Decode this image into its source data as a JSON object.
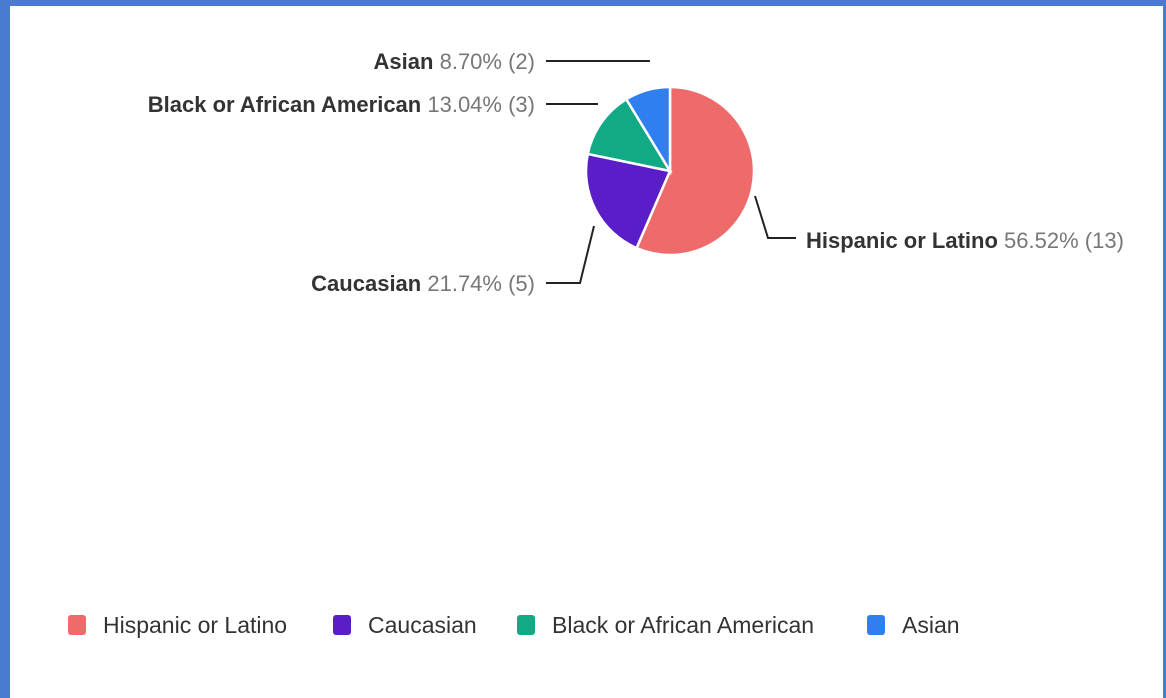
{
  "chart_data": {
    "type": "pie",
    "categories": [
      "Hispanic or Latino",
      "Caucasian",
      "Black or African American",
      "Asian"
    ],
    "values": [
      56.52,
      21.74,
      13.04,
      8.7
    ],
    "value_labels": [
      "56.52%",
      "21.74%",
      "13.04%",
      "8.70%"
    ],
    "counts": [
      13,
      5,
      3,
      2
    ],
    "count_labels": [
      "(13)",
      "(5)",
      "(3)",
      "(2)"
    ],
    "colors": [
      "#ef6b6b",
      "#5a1ec8",
      "#12a985",
      "#2f7ff0"
    ],
    "legend": "bottom"
  }
}
